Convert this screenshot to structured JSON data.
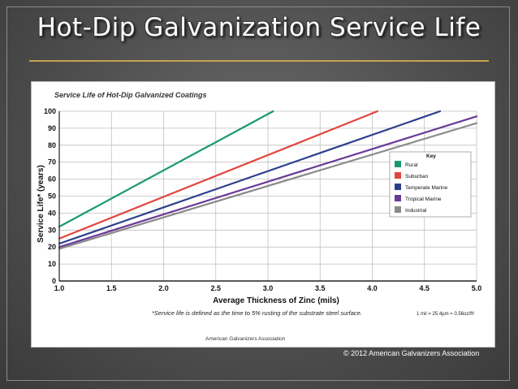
{
  "slide": {
    "title": "Hot-Dip Galvanization Service Life",
    "copyright": "© 2012 American Galvanizers Association"
  },
  "colors": {
    "accent": "#c8a24b",
    "rural": "#1a9a6a",
    "suburban": "#e0463c",
    "temperate_marine": "#2a3f8c",
    "tropical_marine": "#6a3a96",
    "industrial": "#8a8a8a"
  },
  "chart_data": {
    "type": "line",
    "title": "Service Life of Hot-Dip Galvanized Coatings",
    "xlabel": "Average Thickness of Zinc (mils)",
    "ylabel": "Service Life* (years)",
    "xlim": [
      1.0,
      5.0
    ],
    "ylim": [
      0,
      100
    ],
    "x_ticks": [
      "1.0",
      "1.5",
      "2.0",
      "2.5",
      "3.0",
      "3.5",
      "4.0",
      "4.5",
      "5.0"
    ],
    "y_ticks": [
      "0",
      "10",
      "20",
      "30",
      "40",
      "50",
      "60",
      "70",
      "80",
      "90",
      "100"
    ],
    "grid": true,
    "legend_title": "Key",
    "legend_position": "right",
    "series": [
      {
        "name": "Rural",
        "color": "#1a9a6a",
        "x": [
          1.0,
          3.05
        ],
        "y": [
          32,
          100
        ]
      },
      {
        "name": "Suburban",
        "color": "#e0463c",
        "x": [
          1.0,
          4.05
        ],
        "y": [
          25,
          100
        ]
      },
      {
        "name": "Temperate Marine",
        "color": "#2a3f8c",
        "x": [
          1.0,
          4.65
        ],
        "y": [
          22,
          100
        ]
      },
      {
        "name": "Tropical Marine",
        "color": "#6a3a96",
        "x": [
          1.0,
          5.0
        ],
        "y": [
          20,
          97
        ]
      },
      {
        "name": "Industrial",
        "color": "#8a8a8a",
        "x": [
          1.0,
          5.0
        ],
        "y": [
          19,
          93
        ]
      }
    ],
    "footnote": "*Service life is defined as the time to 5% rusting of the substrate steel surface.",
    "conversion_note": "1 mil = 25.4µm = 0.56oz/ft²",
    "source": "American Galvanizers Association"
  }
}
